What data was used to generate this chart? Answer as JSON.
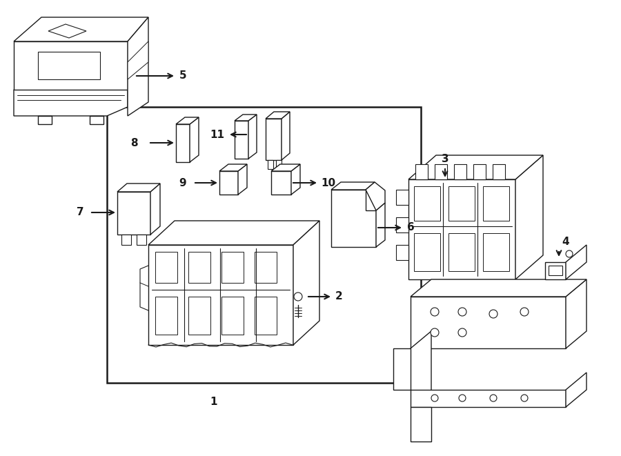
{
  "bg_color": "#ffffff",
  "line_color": "#1a1a1a",
  "fig_width": 9.0,
  "fig_height": 6.61,
  "dpi": 100,
  "lw": 1.0,
  "label_fontsize": 11,
  "label_fontweight": "bold"
}
